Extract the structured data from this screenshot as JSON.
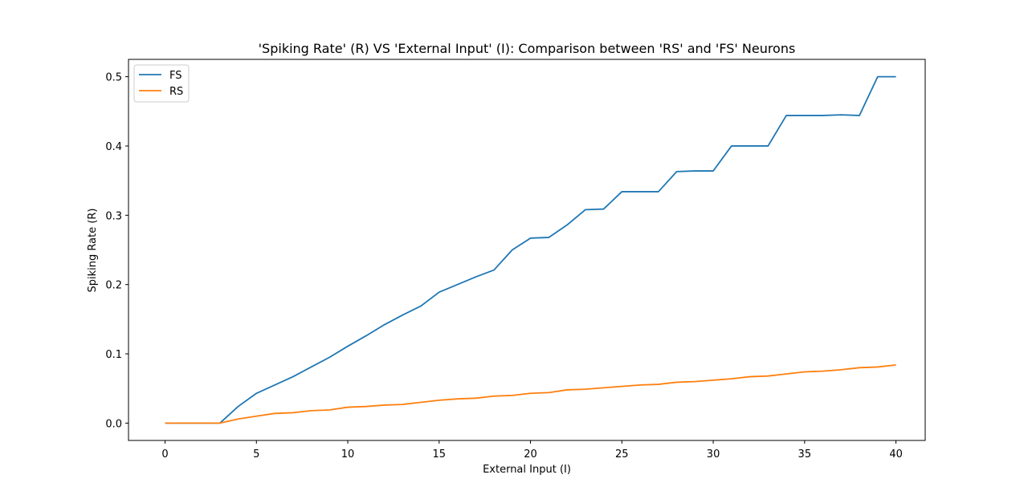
{
  "chart_data": {
    "type": "line",
    "title": "'Spiking Rate' (R) VS 'External Input' (I): Comparison between 'RS' and 'FS' Neurons",
    "xlabel": "External Input (I)",
    "ylabel": "Spiking Rate (R)",
    "xlim": [
      -2,
      41.6
    ],
    "ylim": [
      -0.025,
      0.525
    ],
    "xticks": [
      0,
      5,
      10,
      15,
      20,
      25,
      30,
      35,
      40
    ],
    "xtick_labels": [
      "0",
      "5",
      "10",
      "15",
      "20",
      "25",
      "30",
      "35",
      "40"
    ],
    "yticks": [
      0.0,
      0.1,
      0.2,
      0.3,
      0.4,
      0.5
    ],
    "ytick_labels": [
      "0.0",
      "0.1",
      "0.2",
      "0.3",
      "0.4",
      "0.5"
    ],
    "grid": false,
    "legend_position": "top-left",
    "x": [
      0,
      1,
      2,
      3,
      4,
      5,
      6,
      7,
      8,
      9,
      10,
      11,
      12,
      13,
      14,
      15,
      16,
      17,
      18,
      19,
      20,
      21,
      22,
      23,
      24,
      25,
      26,
      27,
      28,
      29,
      30,
      31,
      32,
      33,
      34,
      35,
      36,
      37,
      38,
      39,
      40
    ],
    "series": [
      {
        "name": "FS",
        "color": "#1f77b4",
        "values": [
          0,
          0,
          0,
          0,
          0.024,
          0.043,
          0.055,
          0.067,
          0.081,
          0.095,
          0.111,
          0.126,
          0.142,
          0.156,
          0.169,
          0.189,
          0.2,
          0.211,
          0.221,
          0.25,
          0.267,
          0.268,
          0.286,
          0.308,
          0.309,
          0.334,
          0.334,
          0.334,
          0.363,
          0.364,
          0.364,
          0.4,
          0.4,
          0.4,
          0.444,
          0.444,
          0.444,
          0.445,
          0.444,
          0.5,
          0.5
        ]
      },
      {
        "name": "RS",
        "color": "#ff7f0e",
        "values": [
          0,
          0,
          0,
          0,
          0.006,
          0.01,
          0.014,
          0.015,
          0.018,
          0.019,
          0.023,
          0.024,
          0.026,
          0.027,
          0.03,
          0.033,
          0.035,
          0.036,
          0.039,
          0.04,
          0.043,
          0.044,
          0.048,
          0.049,
          0.051,
          0.053,
          0.055,
          0.056,
          0.059,
          0.06,
          0.062,
          0.064,
          0.067,
          0.068,
          0.071,
          0.074,
          0.075,
          0.077,
          0.08,
          0.081,
          0.084
        ]
      }
    ]
  }
}
